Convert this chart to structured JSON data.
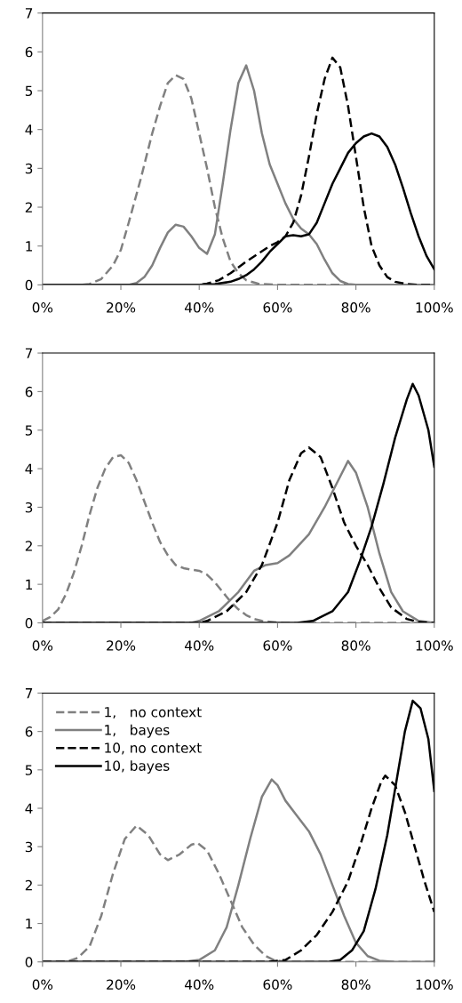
{
  "chart_data": [
    {
      "type": "line",
      "xlim": [
        0,
        100
      ],
      "ylim": [
        0,
        7
      ],
      "yticks": [
        0,
        1,
        2,
        3,
        4,
        5,
        6,
        7
      ],
      "xticks": [
        {
          "value": 0,
          "label": "0%"
        },
        {
          "value": 20,
          "label": "20%"
        },
        {
          "value": 40,
          "label": "40%"
        },
        {
          "value": 60,
          "label": "60%"
        },
        {
          "value": 80,
          "label": "80%"
        },
        {
          "value": 100,
          "label": "100%"
        }
      ],
      "grid": false,
      "legend": false,
      "marker": "none",
      "series": [
        {
          "color": "#808080",
          "line_style": "dashed",
          "x": [
            0,
            10,
            12,
            15,
            18,
            20,
            22,
            25,
            28,
            30,
            32,
            34,
            36,
            38,
            40,
            42,
            44,
            46,
            48,
            50,
            52,
            55,
            60,
            100
          ],
          "values": [
            0,
            0,
            0.02,
            0.15,
            0.5,
            0.9,
            1.6,
            2.7,
            3.9,
            4.6,
            5.2,
            5.4,
            5.3,
            4.8,
            3.9,
            3.0,
            2.0,
            1.2,
            0.6,
            0.3,
            0.12,
            0.03,
            0,
            0
          ]
        },
        {
          "color": "#808080",
          "line_style": "solid",
          "x": [
            0,
            22,
            24,
            26,
            28,
            30,
            32,
            34,
            36,
            38,
            40,
            42,
            44,
            46,
            48,
            50,
            52,
            54,
            56,
            58,
            60,
            62,
            64,
            66,
            68,
            70,
            72,
            74,
            76,
            78,
            80,
            100
          ],
          "values": [
            0,
            0,
            0.05,
            0.2,
            0.5,
            0.95,
            1.35,
            1.55,
            1.5,
            1.25,
            0.95,
            0.8,
            1.3,
            2.6,
            4.0,
            5.2,
            5.65,
            5.0,
            3.9,
            3.1,
            2.6,
            2.1,
            1.7,
            1.45,
            1.3,
            1.05,
            0.65,
            0.3,
            0.1,
            0.02,
            0,
            0
          ]
        },
        {
          "color": "#000000",
          "line_style": "dashed",
          "x": [
            0,
            40,
            42,
            45,
            48,
            50,
            52,
            55,
            58,
            60,
            62,
            64,
            66,
            68,
            70,
            72,
            74,
            76,
            78,
            80,
            82,
            84,
            86,
            88,
            90,
            93,
            96,
            100
          ],
          "values": [
            0,
            0,
            0.03,
            0.12,
            0.3,
            0.45,
            0.6,
            0.8,
            1.0,
            1.1,
            1.25,
            1.6,
            2.3,
            3.3,
            4.4,
            5.3,
            5.85,
            5.6,
            4.6,
            3.3,
            2.0,
            1.0,
            0.5,
            0.2,
            0.08,
            0.02,
            0,
            0
          ]
        },
        {
          "color": "#000000",
          "line_style": "solid",
          "x": [
            0,
            40,
            44,
            48,
            50,
            52,
            54,
            56,
            58,
            60,
            62,
            64,
            66,
            68,
            70,
            72,
            74,
            76,
            78,
            80,
            82,
            84,
            86,
            88,
            90,
            92,
            94,
            96,
            98,
            100
          ],
          "values": [
            0,
            0,
            0.02,
            0.08,
            0.15,
            0.25,
            0.4,
            0.6,
            0.85,
            1.05,
            1.25,
            1.28,
            1.25,
            1.3,
            1.6,
            2.1,
            2.6,
            3.0,
            3.4,
            3.65,
            3.82,
            3.9,
            3.82,
            3.55,
            3.1,
            2.5,
            1.85,
            1.25,
            0.75,
            0.4
          ]
        }
      ]
    },
    {
      "type": "line",
      "xlim": [
        0,
        100
      ],
      "ylim": [
        0,
        7
      ],
      "yticks": [
        0,
        1,
        2,
        3,
        4,
        5,
        6,
        7
      ],
      "xticks": [
        {
          "value": 0,
          "label": "0%"
        },
        {
          "value": 20,
          "label": "20%"
        },
        {
          "value": 40,
          "label": "40%"
        },
        {
          "value": 60,
          "label": "60%"
        },
        {
          "value": 80,
          "label": "80%"
        },
        {
          "value": 100,
          "label": "100%"
        }
      ],
      "grid": false,
      "legend": false,
      "marker": "none",
      "series": [
        {
          "color": "#808080",
          "line_style": "dashed",
          "x": [
            0,
            2,
            4,
            6,
            8,
            10,
            12,
            14,
            16,
            18,
            20,
            22,
            24,
            26,
            28,
            30,
            32,
            34,
            36,
            38,
            40,
            42,
            44,
            46,
            48,
            50,
            52,
            54,
            56,
            60,
            62,
            100
          ],
          "values": [
            0.05,
            0.15,
            0.35,
            0.75,
            1.3,
            2.0,
            2.8,
            3.5,
            4.0,
            4.3,
            4.35,
            4.15,
            3.7,
            3.15,
            2.6,
            2.1,
            1.75,
            1.5,
            1.42,
            1.38,
            1.35,
            1.25,
            1.05,
            0.8,
            0.55,
            0.35,
            0.2,
            0.1,
            0.05,
            0.01,
            0,
            0
          ]
        },
        {
          "color": "#808080",
          "line_style": "solid",
          "x": [
            0,
            38,
            40,
            45,
            50,
            54,
            57,
            60,
            63,
            68,
            72,
            76,
            78,
            80,
            83,
            86,
            89,
            92,
            96,
            100
          ],
          "values": [
            0,
            0,
            0.05,
            0.3,
            0.8,
            1.35,
            1.5,
            1.55,
            1.75,
            2.3,
            3.0,
            3.8,
            4.2,
            3.9,
            3.0,
            1.8,
            0.8,
            0.3,
            0.05,
            0
          ]
        },
        {
          "color": "#000000",
          "line_style": "dashed",
          "x": [
            0,
            40,
            42,
            47,
            52,
            56,
            60,
            63,
            66,
            68,
            71,
            74,
            77,
            80,
            83,
            86,
            89,
            93,
            96,
            100
          ],
          "values": [
            0,
            0,
            0.05,
            0.3,
            0.8,
            1.5,
            2.6,
            3.7,
            4.4,
            4.55,
            4.3,
            3.5,
            2.6,
            2.0,
            1.5,
            0.9,
            0.4,
            0.1,
            0.02,
            0
          ]
        },
        {
          "color": "#000000",
          "line_style": "solid",
          "x": [
            0,
            65,
            69,
            74,
            78,
            81,
            84,
            87,
            90,
            93,
            94.5,
            96,
            98.5,
            100
          ],
          "values": [
            0,
            0,
            0.05,
            0.3,
            0.8,
            1.6,
            2.5,
            3.6,
            4.8,
            5.8,
            6.2,
            5.9,
            5.0,
            4.05
          ]
        }
      ]
    },
    {
      "type": "line",
      "xlim": [
        0,
        100
      ],
      "ylim": [
        0,
        7
      ],
      "yticks": [
        0,
        1,
        2,
        3,
        4,
        5,
        6,
        7
      ],
      "xticks": [
        {
          "value": 0,
          "label": "0%"
        },
        {
          "value": 20,
          "label": "20%"
        },
        {
          "value": 40,
          "label": "40%"
        },
        {
          "value": 60,
          "label": "60%"
        },
        {
          "value": 80,
          "label": "80%"
        },
        {
          "value": 100,
          "label": "100%"
        }
      ],
      "grid": false,
      "legend": "top left",
      "marker": "none",
      "series": [
        {
          "name": "1,   no context",
          "color": "#808080",
          "line_style": "dashed",
          "x": [
            0,
            6,
            9,
            12,
            15,
            18,
            21,
            24,
            27,
            30,
            32,
            35,
            38,
            39.5,
            42,
            45,
            48,
            51,
            54,
            57,
            59,
            62,
            100
          ],
          "values": [
            0,
            0,
            0.1,
            0.4,
            1.2,
            2.3,
            3.2,
            3.55,
            3.3,
            2.8,
            2.65,
            2.8,
            3.05,
            3.1,
            2.9,
            2.3,
            1.6,
            0.9,
            0.45,
            0.15,
            0.05,
            0,
            0
          ]
        },
        {
          "name": "1,   bayes",
          "color": "#808080",
          "line_style": "solid",
          "x": [
            0,
            36,
            40,
            44,
            47,
            50,
            53,
            56,
            58.5,
            60,
            62,
            65,
            68,
            71,
            74,
            77,
            80,
            83,
            86,
            90,
            100
          ],
          "values": [
            0,
            0,
            0.05,
            0.3,
            0.9,
            2.0,
            3.2,
            4.3,
            4.75,
            4.6,
            4.2,
            3.8,
            3.4,
            2.8,
            2.0,
            1.2,
            0.5,
            0.15,
            0.03,
            0,
            0
          ]
        },
        {
          "name": "10, no context",
          "color": "#000000",
          "line_style": "dashed",
          "x": [
            0,
            57,
            62,
            66,
            70,
            74,
            78,
            81,
            84,
            86.5,
            87.5,
            90,
            92.5,
            95,
            97.5,
            100
          ],
          "values": [
            0,
            0,
            0.05,
            0.3,
            0.7,
            1.3,
            2.1,
            3.0,
            4.0,
            4.7,
            4.85,
            4.6,
            3.9,
            3.0,
            2.1,
            1.3
          ]
        },
        {
          "name": "10, bayes",
          "color": "#000000",
          "line_style": "solid",
          "x": [
            0,
            73,
            76,
            79,
            82,
            85,
            88,
            90.5,
            92.5,
            94.5,
            96.5,
            98.5,
            100
          ],
          "values": [
            0,
            0,
            0.05,
            0.3,
            0.8,
            1.9,
            3.3,
            4.8,
            6.0,
            6.8,
            6.6,
            5.8,
            4.45
          ]
        }
      ]
    }
  ]
}
